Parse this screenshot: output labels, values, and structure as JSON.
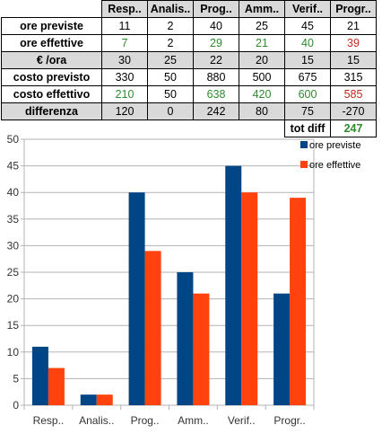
{
  "table": {
    "headers": [
      "Resp..",
      "Analis..",
      "Prog..",
      "Amm..",
      "Verif..",
      "Progr.."
    ],
    "rows": [
      {
        "label": "ore previste",
        "values": [
          "11",
          "2",
          "40",
          "25",
          "45",
          "21"
        ]
      },
      {
        "label": "ore effettive",
        "values": [
          "7",
          "2",
          "29",
          "21",
          "40",
          "39"
        ]
      },
      {
        "label": "€ /ora",
        "values": [
          "30",
          "25",
          "22",
          "20",
          "15",
          "15"
        ]
      },
      {
        "label": "costo previsto",
        "values": [
          "330",
          "50",
          "880",
          "500",
          "675",
          "315"
        ]
      },
      {
        "label": "costo effettivo",
        "values": [
          "210",
          "50",
          "638",
          "420",
          "600",
          "585"
        ]
      },
      {
        "label": "differenza",
        "values": [
          "120",
          "0",
          "242",
          "80",
          "75",
          "-270"
        ]
      }
    ],
    "total_label": "tot diff",
    "total_value": "247"
  },
  "chart_data": {
    "type": "bar",
    "categories": [
      "Resp..",
      "Analis..",
      "Prog..",
      "Amm..",
      "Verif..",
      "Progr.."
    ],
    "series": [
      {
        "name": "ore previste",
        "values": [
          11,
          2,
          40,
          25,
          45,
          21
        ],
        "color": "#004586"
      },
      {
        "name": "ore effettive",
        "values": [
          7,
          2,
          29,
          21,
          40,
          39
        ],
        "color": "#ff420e"
      }
    ],
    "ylim": [
      0,
      50
    ],
    "yticks": [
      0,
      5,
      10,
      15,
      20,
      25,
      30,
      35,
      40,
      45,
      50
    ],
    "grid": true,
    "legend": "top-right",
    "title": "",
    "xlabel": "",
    "ylabel": ""
  },
  "colors": {
    "header_bg": "#d9d9d9",
    "green_text": "#2e8b2e",
    "red_text": "#c0281f",
    "series1": "#004586",
    "series2": "#ff420e"
  }
}
